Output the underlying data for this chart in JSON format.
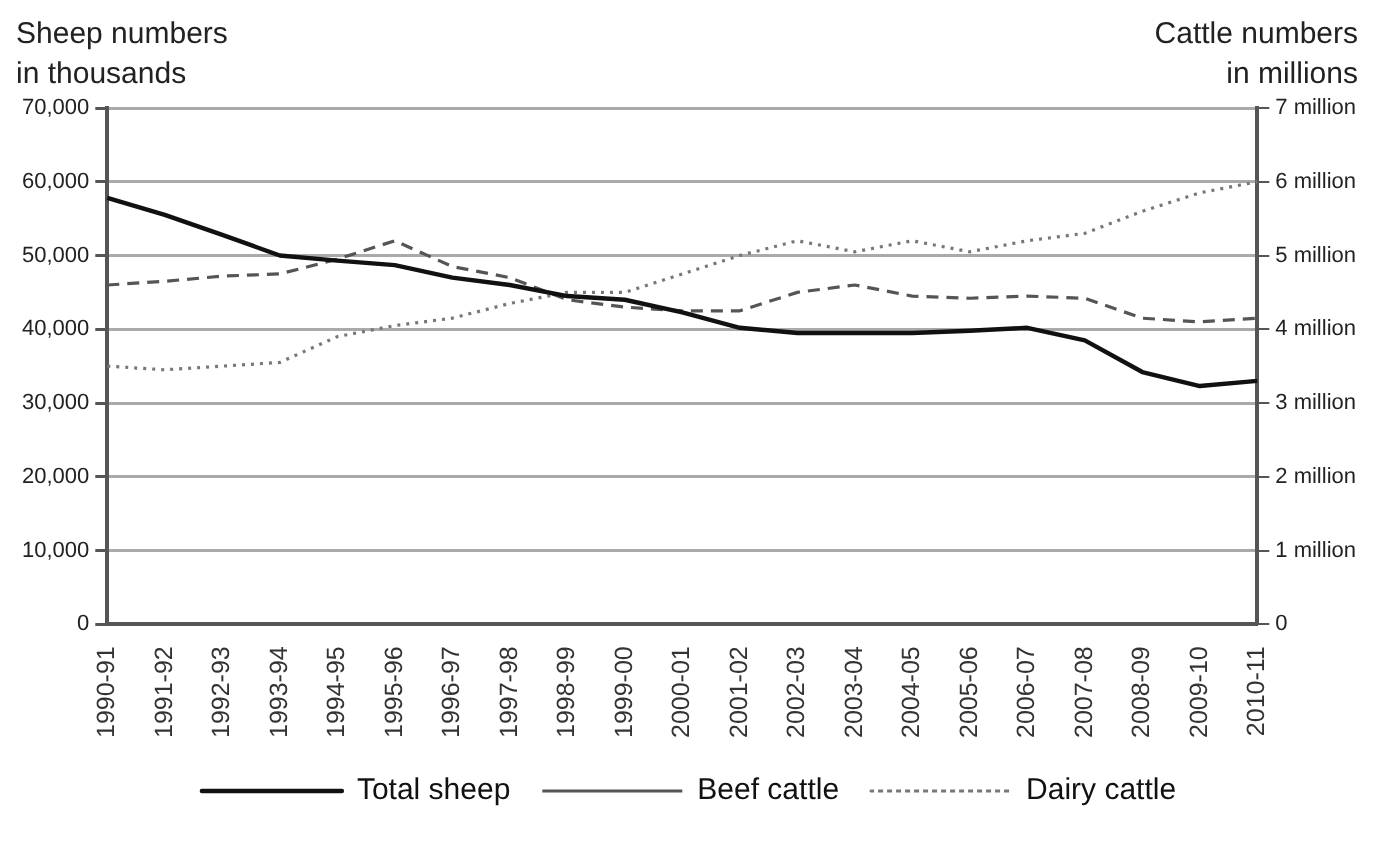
{
  "chart_data": {
    "type": "line",
    "ylabel": "Sheep numbers\nin thousands",
    "y2label": "Cattle numbers\nin millions",
    "categories": [
      "1990-91",
      "1991-92",
      "1992-93",
      "1993-94",
      "1994-95",
      "1995-96",
      "1996-97",
      "1997-98",
      "1998-99",
      "1999-00",
      "2000-01",
      "2001-02",
      "2002-03",
      "2003-04",
      "2004-05",
      "2005-06",
      "2006-07",
      "2007-08",
      "2008-09",
      "2009-10",
      "2010-11"
    ],
    "series": [
      {
        "name": "Total sheep",
        "color": "#111111",
        "line_style": "solid",
        "values": [
          57800,
          55500,
          52800,
          50000,
          49300,
          48700,
          47000,
          46000,
          44500,
          44000,
          42300,
          40200,
          39500,
          39500,
          39500,
          39800,
          40200,
          38500,
          34200,
          32300,
          33000
        ]
      },
      {
        "name": "Beef cattle",
        "color": "#555555",
        "line_style": "dashed",
        "axis": "y2",
        "values": [
          4.6,
          4.65,
          4.72,
          4.75,
          4.95,
          5.2,
          4.85,
          4.7,
          4.4,
          4.3,
          4.25,
          4.25,
          4.5,
          4.6,
          4.45,
          4.42,
          4.45,
          4.42,
          4.15,
          4.1,
          4.15
        ]
      },
      {
        "name": "Dairy cattle",
        "color": "#777777",
        "line_style": "dotted",
        "axis": "y2",
        "values": [
          3.5,
          3.45,
          3.5,
          3.55,
          3.9,
          4.05,
          4.15,
          4.35,
          4.5,
          4.5,
          4.75,
          5.0,
          5.2,
          5.05,
          5.2,
          5.05,
          5.2,
          5.3,
          5.6,
          5.85,
          6.0
        ]
      }
    ],
    "ylim": [
      0,
      70000
    ],
    "yticks": [
      0,
      {
        "value": 10000,
        "label": "10,000"
      },
      {
        "value": 20000,
        "label": "20,000"
      },
      {
        "value": 30000,
        "label": "30,000"
      },
      {
        "value": 40000,
        "label": "40,000"
      },
      {
        "value": 50000,
        "label": "50,000"
      },
      {
        "value": 60000,
        "label": "60,000"
      },
      {
        "value": 70000,
        "label": "70,000"
      }
    ],
    "y2lim": [
      0,
      7
    ],
    "y2ticks": [
      0,
      {
        "value": 1,
        "label": "1 million"
      },
      {
        "value": 2,
        "label": "2 million"
      },
      {
        "value": 3,
        "label": "3 million"
      },
      {
        "value": 4,
        "label": "4 million"
      },
      {
        "value": 5,
        "label": "5 million"
      },
      {
        "value": 6,
        "label": "6 million"
      },
      {
        "value": 7,
        "label": "7 million"
      }
    ],
    "grid": "y",
    "legend": "bottom",
    "marker": "none"
  }
}
